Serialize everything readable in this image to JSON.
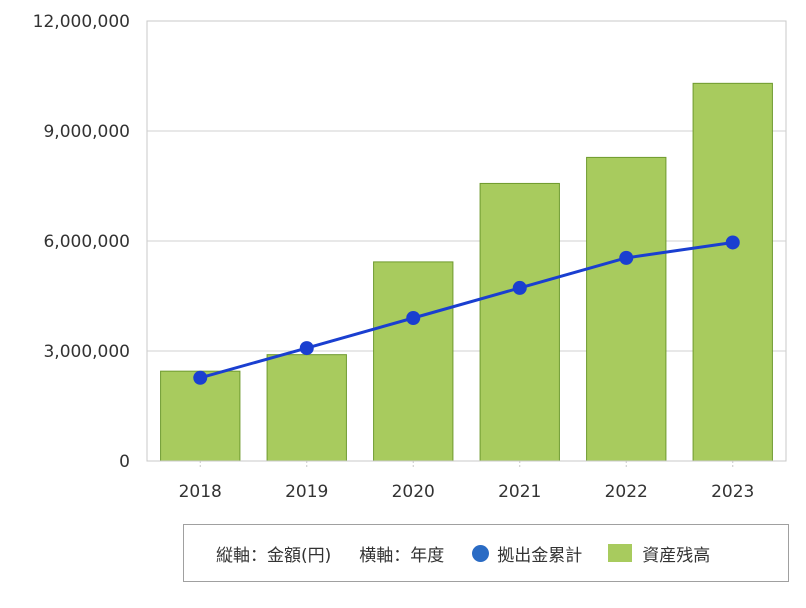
{
  "chart_data": {
    "type": "bar",
    "categories": [
      "2018",
      "2019",
      "2020",
      "2021",
      "2022",
      "2023"
    ],
    "series": [
      {
        "name": "資産残高",
        "kind": "bar",
        "color": "#a8cb5e",
        "stroke": "#6e9a2e",
        "values": [
          2450000,
          2900000,
          5430000,
          7570000,
          8280000,
          10300000
        ]
      },
      {
        "name": "拠出金累計",
        "kind": "line",
        "color": "#1a3fd0",
        "marker": "#1a3fd0",
        "values": [
          2270000,
          3080000,
          3900000,
          4720000,
          5540000,
          5960000
        ]
      }
    ],
    "ylim": [
      0,
      12000000
    ],
    "yticks": [
      "0",
      "3,000,000",
      "6,000,000",
      "9,000,000",
      "12,000,000"
    ],
    "ytick_values": [
      0,
      3000000,
      6000000,
      9000000,
      12000000
    ],
    "grid": true,
    "legend_position": "bottom-right"
  },
  "legend": {
    "vertical_axis_note": "縦軸：金額(円)",
    "horizontal_axis_note": "横軸：年度",
    "line_label": "拠出金累計",
    "bar_label": "資産残高",
    "line_color": "#2a6bc4",
    "bar_color": "#a8cb5e"
  }
}
